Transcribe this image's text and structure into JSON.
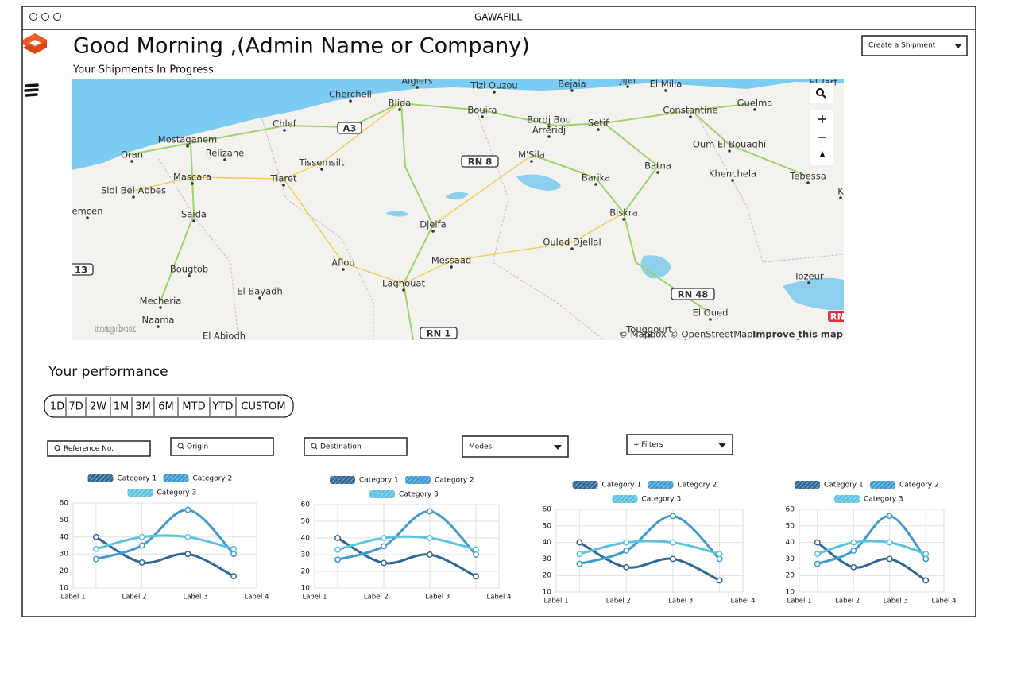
{
  "window": {
    "title": "GAWAFILL"
  },
  "header": {
    "greeting": "Good Morning ,(Admin Name or Company)",
    "subtitle": "Your Shipments In Progress",
    "action": "Create a Shipment"
  },
  "map": {
    "labels": [
      "Algiers",
      "Tizi Ouzou",
      "Bejaia",
      "Jijel",
      "El Milia",
      "El Tarf",
      "Cherchell",
      "Blida",
      "Bouira",
      "Constantine",
      "Guelma",
      "Chlef",
      "A3",
      "Bordj Bou",
      "Arreridj",
      "Setif",
      "Mostaganem",
      "Relizane",
      "Oum El Bouaghi",
      "Oran",
      "M'Sila",
      "RN 8",
      "Tissemsilt",
      "Mascara",
      "Tiaret",
      "Batna",
      "Khenchela",
      "Tebessa",
      "Sidi Bel Abbes",
      "Barika",
      "emcen",
      "Saida",
      "Biskra",
      "Djelfa",
      "K",
      "Ouled Djellal",
      "Messaad",
      "Aflou",
      "Bougtob",
      "13",
      "Laghouat",
      "Tozeur",
      "Mecheria",
      "El Bayadh",
      "RN 48",
      "El Oued",
      "Naama",
      "RN",
      "El Abiodh",
      "RN 1",
      "Touggourt",
      "mapbox",
      "© Mapbox © OpenStreetMap",
      "Improve this map"
    ]
  },
  "performance": {
    "title": "Your performance",
    "ranges": [
      "1D",
      "7D",
      "2W",
      "1M",
      "3M",
      "6M",
      "MTD",
      "YTD",
      "CUSTOM"
    ],
    "filters": [
      "Reference No.",
      "Origin",
      "Destination",
      "Modes",
      "+ Filters"
    ]
  },
  "chart_data": [
    {
      "type": "line",
      "categories": [
        "Label 1",
        "Label 2",
        "Label 3",
        "Label 4"
      ],
      "ylim": [
        10,
        60
      ],
      "yticks": [
        10,
        20,
        30,
        40,
        50,
        60
      ],
      "grid": true,
      "series": [
        {
          "name": "Category 1",
          "color": "#2f6797",
          "values": [
            40,
            25,
            30,
            17
          ]
        },
        {
          "name": "Category 2",
          "color": "#3e9bd0",
          "values": [
            27,
            35,
            56,
            30
          ]
        },
        {
          "name": "Category 3",
          "color": "#5cc2e2",
          "values": [
            33,
            40,
            40,
            33
          ]
        }
      ]
    },
    {
      "type": "line",
      "categories": [
        "Label 1",
        "Label 2",
        "Label 3",
        "Label 4"
      ],
      "ylim": [
        10,
        60
      ],
      "yticks": [
        10,
        20,
        30,
        40,
        50,
        60
      ],
      "grid": true,
      "series": [
        {
          "name": "Category 1",
          "color": "#2f6797",
          "values": [
            40,
            25,
            30,
            17
          ]
        },
        {
          "name": "Category 2",
          "color": "#3e9bd0",
          "values": [
            27,
            35,
            56,
            30
          ]
        },
        {
          "name": "Category 3",
          "color": "#5cc2e2",
          "values": [
            33,
            40,
            40,
            33
          ]
        }
      ]
    },
    {
      "type": "line",
      "categories": [
        "Label 1",
        "Label 2",
        "Label 3",
        "Label 4"
      ],
      "ylim": [
        10,
        60
      ],
      "yticks": [
        10,
        20,
        30,
        40,
        50,
        60
      ],
      "grid": true,
      "series": [
        {
          "name": "Category 1",
          "color": "#2f6797",
          "values": [
            40,
            25,
            30,
            17
          ]
        },
        {
          "name": "Category 2",
          "color": "#3e9bd0",
          "values": [
            27,
            35,
            56,
            30
          ]
        },
        {
          "name": "Category 3",
          "color": "#5cc2e2",
          "values": [
            33,
            40,
            40,
            33
          ]
        }
      ]
    },
    {
      "type": "line",
      "categories": [
        "Label 1",
        "Label 2",
        "Label 3",
        "Label 4"
      ],
      "ylim": [
        10,
        60
      ],
      "yticks": [
        10,
        20,
        30,
        40,
        50,
        60
      ],
      "grid": true,
      "series": [
        {
          "name": "Category 1",
          "color": "#2f6797",
          "values": [
            40,
            25,
            30,
            17
          ]
        },
        {
          "name": "Category 2",
          "color": "#3e9bd0",
          "values": [
            27,
            35,
            56,
            30
          ]
        },
        {
          "name": "Category 3",
          "color": "#5cc2e2",
          "values": [
            33,
            40,
            40,
            33
          ]
        }
      ]
    }
  ]
}
